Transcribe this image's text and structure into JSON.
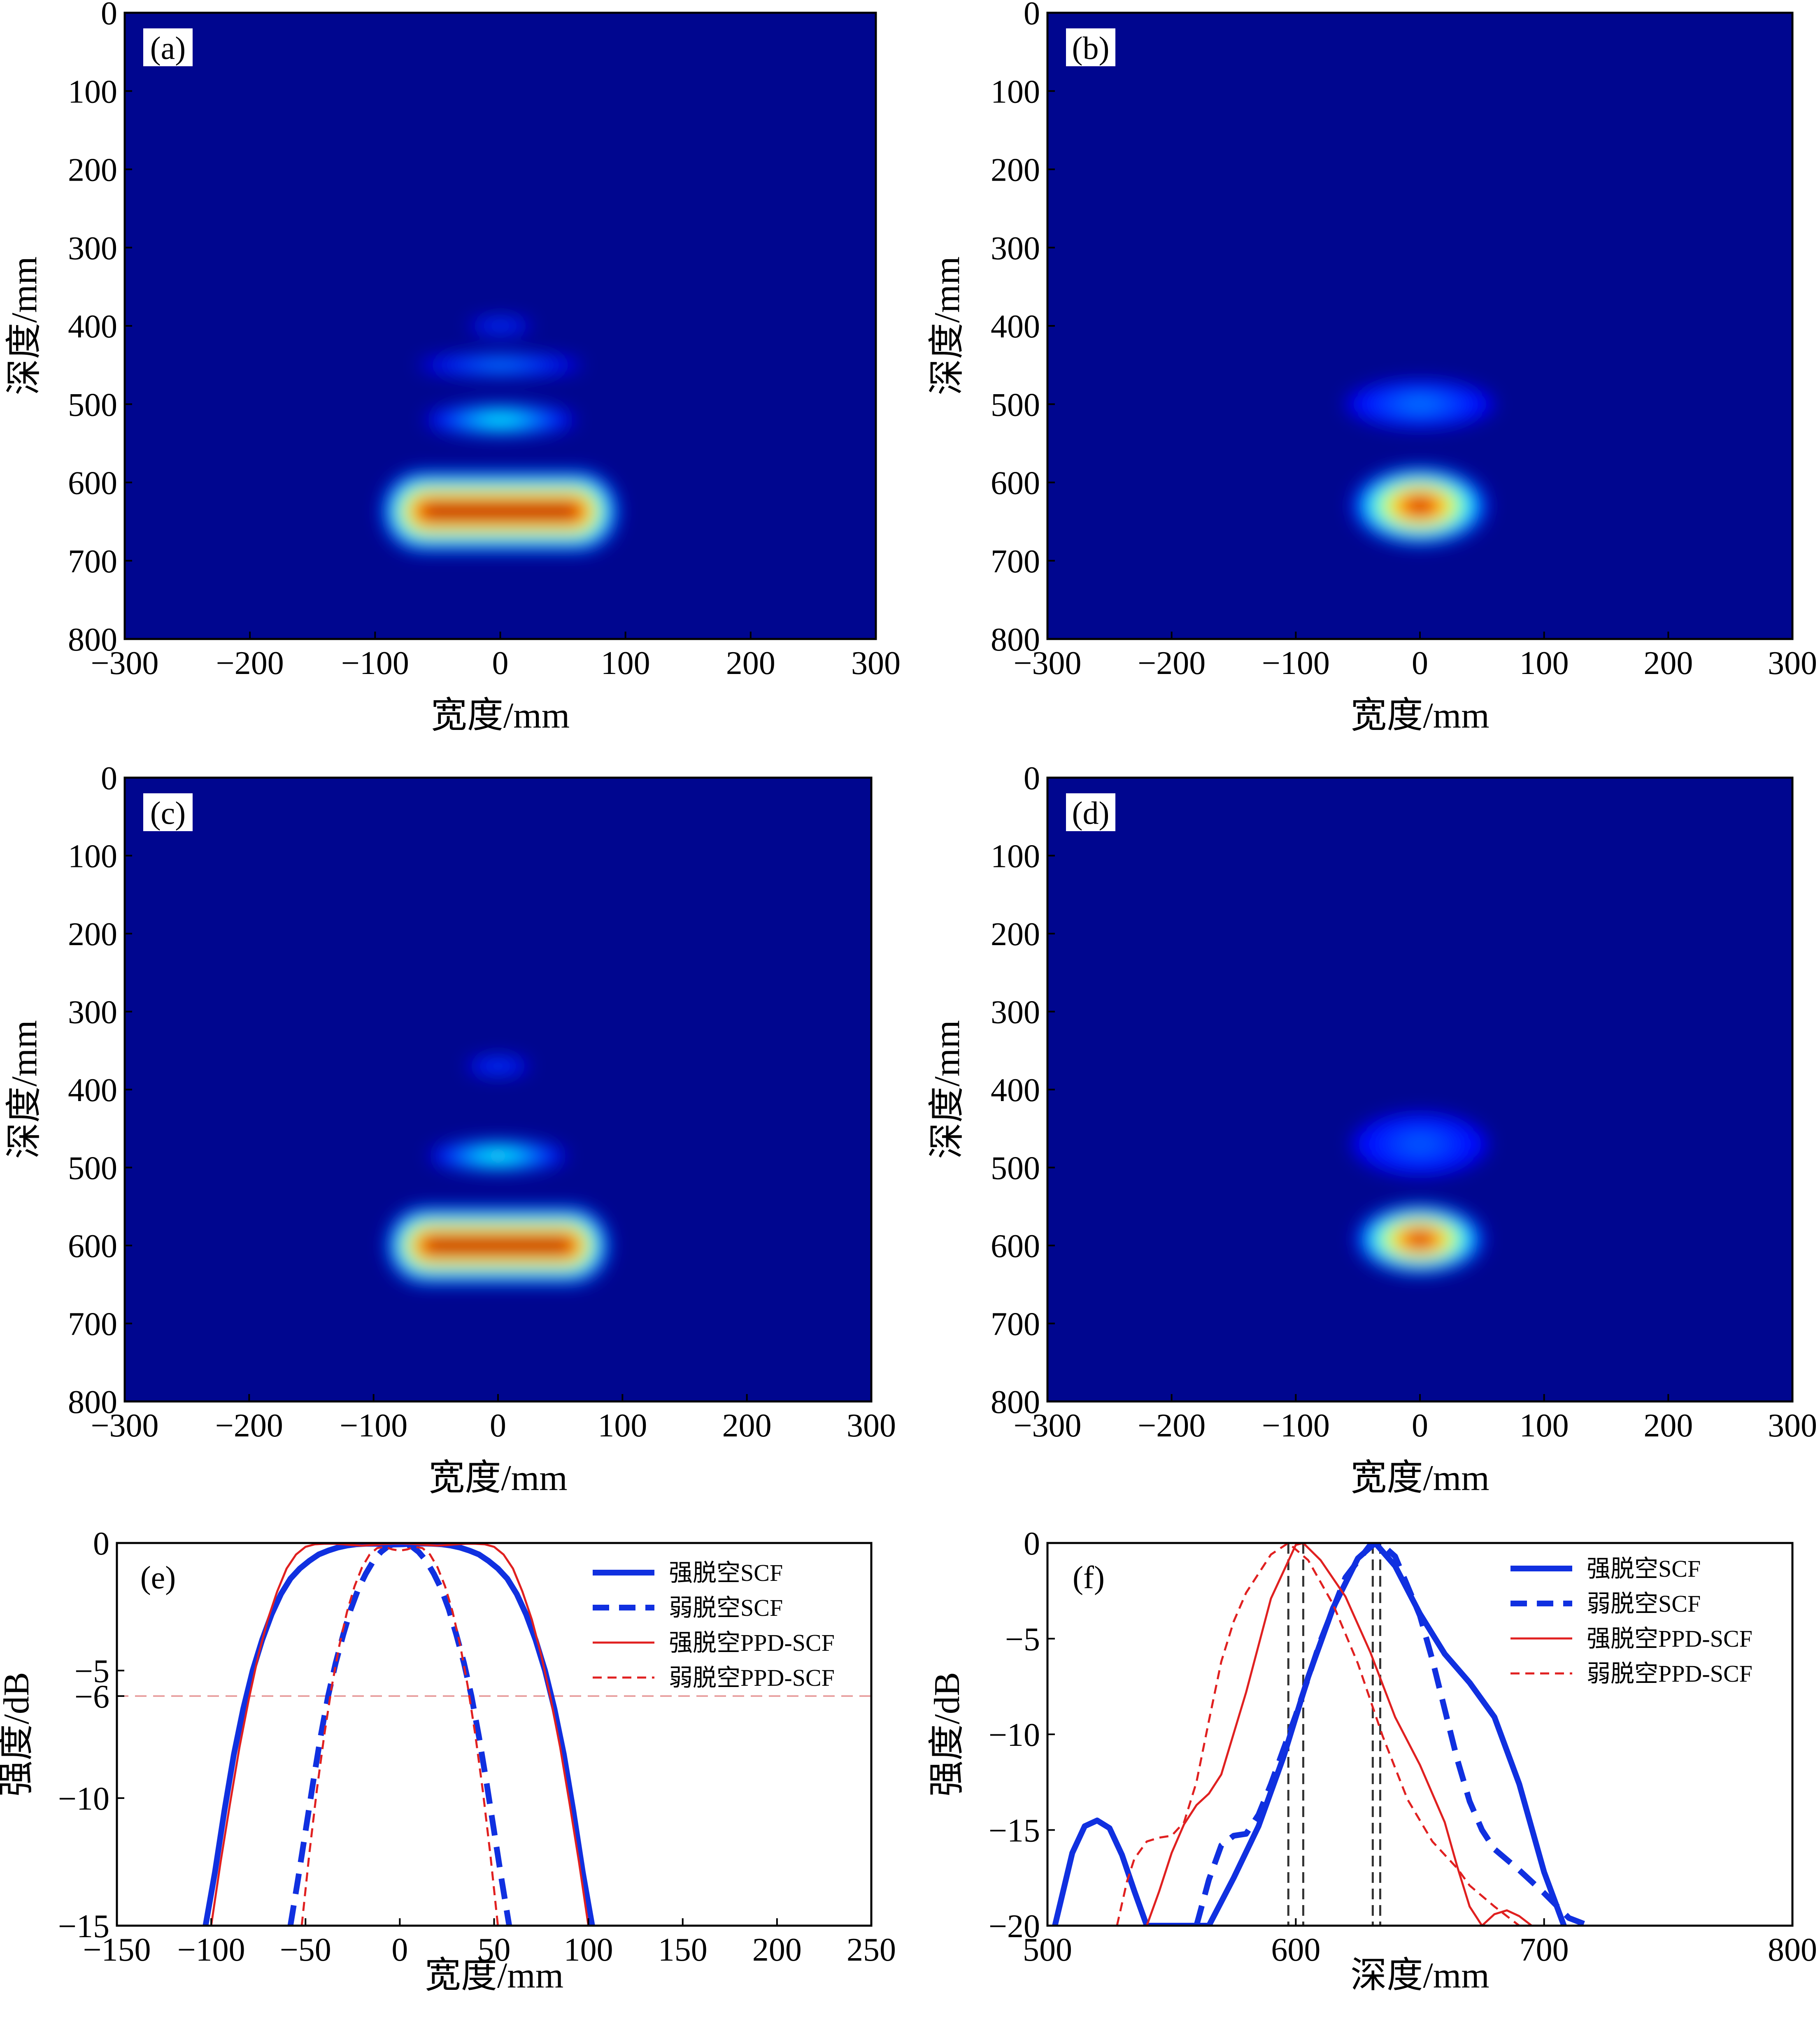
{
  "chart_data": [
    {
      "type": "heatmap",
      "panel_label": "(a)",
      "xlabel": "宽度/mm",
      "ylabel": "深度/mm",
      "xlim": [
        -300,
        300
      ],
      "ylim": [
        800,
        0
      ],
      "xticks": [
        -300,
        -200,
        -100,
        0,
        100,
        200,
        300
      ],
      "yticks": [
        0,
        100,
        200,
        300,
        400,
        500,
        600,
        700,
        800
      ],
      "xtick_labels": [
        "−300",
        "−200",
        "−100",
        "0",
        "100",
        "200",
        "300"
      ],
      "ytick_labels": [
        "0",
        "100",
        "200",
        "300",
        "400",
        "500",
        "600",
        "700",
        "800"
      ],
      "colormap": "jet",
      "background_color": "#00068f",
      "blobs": [
        {
          "x": 0,
          "y": 637,
          "half_width": 95,
          "half_height": 52,
          "intensity": 1.0,
          "shape": "bar"
        },
        {
          "x": 0,
          "y": 450,
          "half_width": 65,
          "half_height": 14,
          "intensity": 0.27,
          "shape": "oval"
        },
        {
          "x": 0,
          "y": 400,
          "half_width": 25,
          "half_height": 10,
          "intensity": 0.2,
          "shape": "oval"
        },
        {
          "x": 0,
          "y": 520,
          "half_width": 60,
          "half_height": 20,
          "intensity": 0.4,
          "shape": "oval"
        }
      ]
    },
    {
      "type": "heatmap",
      "panel_label": "(b)",
      "xlabel": "宽度/mm",
      "ylabel": "深度/mm",
      "xlim": [
        -300,
        300
      ],
      "ylim": [
        800,
        0
      ],
      "xticks": [
        -300,
        -200,
        -100,
        0,
        100,
        200,
        300
      ],
      "yticks": [
        0,
        100,
        200,
        300,
        400,
        500,
        600,
        700,
        800
      ],
      "xtick_labels": [
        "−300",
        "−200",
        "−100",
        "0",
        "100",
        "200",
        "300"
      ],
      "ytick_labels": [
        "0",
        "100",
        "200",
        "300",
        "400",
        "500",
        "600",
        "700",
        "800"
      ],
      "colormap": "jet",
      "background_color": "#00068f",
      "blobs": [
        {
          "x": 0,
          "y": 630,
          "half_width": 55,
          "half_height": 50,
          "intensity": 1.0,
          "shape": "oval"
        },
        {
          "x": 0,
          "y": 500,
          "half_width": 60,
          "half_height": 30,
          "intensity": 0.25,
          "shape": "oval"
        }
      ]
    },
    {
      "type": "heatmap",
      "panel_label": "(c)",
      "xlabel": "宽度/mm",
      "ylabel": "深度/mm",
      "xlim": [
        -300,
        300
      ],
      "ylim": [
        800,
        0
      ],
      "xticks": [
        -300,
        -200,
        -100,
        0,
        100,
        200,
        300
      ],
      "yticks": [
        0,
        100,
        200,
        300,
        400,
        500,
        600,
        700,
        800
      ],
      "xtick_labels": [
        "−300",
        "−200",
        "−100",
        "0",
        "100",
        "200",
        "300"
      ],
      "ytick_labels": [
        "0",
        "100",
        "200",
        "300",
        "400",
        "500",
        "600",
        "700",
        "800"
      ],
      "colormap": "jet",
      "background_color": "#00068f",
      "blobs": [
        {
          "x": 0,
          "y": 600,
          "half_width": 90,
          "half_height": 50,
          "intensity": 1.0,
          "shape": "bar"
        },
        {
          "x": 0,
          "y": 485,
          "half_width": 55,
          "half_height": 20,
          "intensity": 0.42,
          "shape": "oval"
        },
        {
          "x": 0,
          "y": 370,
          "half_width": 25,
          "half_height": 12,
          "intensity": 0.2,
          "shape": "oval"
        }
      ]
    },
    {
      "type": "heatmap",
      "panel_label": "(d)",
      "xlabel": "宽度/mm",
      "ylabel": "深度/mm",
      "xlim": [
        -300,
        300
      ],
      "ylim": [
        800,
        0
      ],
      "xticks": [
        -300,
        -200,
        -100,
        0,
        100,
        200,
        300
      ],
      "yticks": [
        0,
        100,
        200,
        300,
        400,
        500,
        600,
        700,
        800
      ],
      "xtick_labels": [
        "−300",
        "−200",
        "−100",
        "0",
        "100",
        "200",
        "300"
      ],
      "ytick_labels": [
        "0",
        "100",
        "200",
        "300",
        "400",
        "500",
        "600",
        "700",
        "800"
      ],
      "colormap": "jet",
      "background_color": "#00068f",
      "blobs": [
        {
          "x": 0,
          "y": 592,
          "half_width": 52,
          "half_height": 45,
          "intensity": 1.0,
          "shape": "oval"
        },
        {
          "x": 0,
          "y": 470,
          "half_width": 55,
          "half_height": 40,
          "intensity": 0.22,
          "shape": "oval"
        }
      ]
    },
    {
      "type": "line",
      "panel_label": "(e)",
      "xlabel": "宽度/mm",
      "ylabel": "强度/dB",
      "xlim": [
        -150,
        250
      ],
      "ylim": [
        -15,
        0
      ],
      "xticks": [
        -150,
        -100,
        -50,
        0,
        50,
        100,
        150,
        200,
        250
      ],
      "xtick_labels": [
        "−150",
        "−100",
        "−50",
        "0",
        "50",
        "100",
        "150",
        "200",
        "250"
      ],
      "yticks": [
        -15,
        -10,
        -6,
        -5,
        0
      ],
      "ytick_labels": [
        "−15",
        "−10",
        "−6",
        "−5",
        "0"
      ],
      "reference_line": {
        "y": -6,
        "color": "#e8a0a0",
        "style": "dashed"
      },
      "series": [
        {
          "name": "强脱空SCF",
          "color": "#1030e0",
          "style": "solid-thick",
          "x": [
            -103,
            -98,
            -93,
            -88,
            -83,
            -78,
            -73,
            -68,
            -63,
            -58,
            -53,
            -48,
            -43,
            -38,
            -33,
            -28,
            -23,
            -18,
            -13,
            -8,
            -3,
            2,
            7,
            12,
            17,
            22,
            27,
            32,
            37,
            42,
            47,
            52,
            57,
            62,
            67,
            72,
            77,
            82,
            87,
            92,
            97,
            102
          ],
          "y": [
            -15,
            -12.9,
            -10.5,
            -8.3,
            -6.5,
            -5.0,
            -3.8,
            -2.8,
            -2.0,
            -1.4,
            -1.0,
            -0.7,
            -0.45,
            -0.3,
            -0.18,
            -0.1,
            -0.05,
            -0.03,
            -0.03,
            -0.05,
            -0.06,
            -0.05,
            -0.03,
            -0.02,
            -0.03,
            -0.05,
            -0.1,
            -0.18,
            -0.3,
            -0.45,
            -0.7,
            -1.0,
            -1.4,
            -2.0,
            -2.8,
            -3.8,
            -5.0,
            -6.5,
            -8.3,
            -10.5,
            -12.9,
            -15
          ]
        },
        {
          "name": "弱脱空SCF",
          "color": "#1030e0",
          "style": "dashed-thick",
          "x": [
            -58,
            -54,
            -50,
            -46,
            -42,
            -38,
            -34,
            -30,
            -26,
            -22,
            -18,
            -14,
            -10,
            -6,
            -2,
            2,
            6,
            10,
            14,
            18,
            22,
            26,
            30,
            34,
            38,
            42,
            46,
            50,
            54,
            58
          ],
          "y": [
            -15,
            -13.2,
            -11.3,
            -9.4,
            -7.6,
            -6.0,
            -4.7,
            -3.6,
            -2.6,
            -1.8,
            -1.2,
            -0.7,
            -0.35,
            -0.12,
            -0.02,
            -0.02,
            -0.12,
            -0.35,
            -0.7,
            -1.2,
            -1.8,
            -2.6,
            -3.6,
            -4.7,
            -6.0,
            -7.6,
            -9.4,
            -11.3,
            -13.2,
            -15
          ]
        },
        {
          "name": "强脱空PPD-SCF",
          "color": "#e02020",
          "style": "solid-thin",
          "x": [
            -100,
            -95,
            -90,
            -85,
            -80,
            -75,
            -70,
            -65,
            -60,
            -55,
            -50,
            -45,
            -40,
            -35,
            -30,
            -25,
            -20,
            -15,
            -10,
            -5,
            0,
            5,
            10,
            15,
            20,
            25,
            30,
            35,
            40,
            45,
            50,
            55,
            60,
            65,
            70,
            75,
            80,
            85,
            90,
            95,
            100
          ],
          "y": [
            -15,
            -12.5,
            -10.2,
            -8.0,
            -6.1,
            -4.4,
            -3.0,
            -1.9,
            -1.0,
            -0.45,
            -0.15,
            -0.05,
            -0.03,
            -0.03,
            -0.05,
            -0.08,
            -0.1,
            -0.08,
            -0.05,
            -0.03,
            -0.02,
            -0.03,
            -0.05,
            -0.08,
            -0.1,
            -0.08,
            -0.05,
            -0.03,
            -0.03,
            -0.05,
            -0.15,
            -0.45,
            -1.0,
            -1.9,
            -3.0,
            -4.4,
            -6.1,
            -8.0,
            -10.2,
            -12.5,
            -15
          ]
        },
        {
          "name": "弱脱空PPD-SCF",
          "color": "#e02020",
          "style": "dashed-thin",
          "x": [
            -52,
            -48,
            -44,
            -40,
            -36,
            -32,
            -28,
            -24,
            -20,
            -16,
            -12,
            -8,
            -4,
            0,
            4,
            8,
            12,
            16,
            20,
            24,
            28,
            32,
            36,
            40,
            44,
            48,
            52
          ],
          "y": [
            -15,
            -12.2,
            -9.7,
            -7.5,
            -5.6,
            -4.0,
            -2.7,
            -1.7,
            -0.95,
            -0.45,
            -0.2,
            -0.15,
            -0.25,
            -0.3,
            -0.25,
            -0.15,
            -0.2,
            -0.45,
            -0.95,
            -1.7,
            -2.7,
            -4.0,
            -5.6,
            -7.5,
            -9.7,
            -12.2,
            -15
          ]
        }
      ]
    },
    {
      "type": "line",
      "panel_label": "(f)",
      "xlabel": "深度/mm",
      "ylabel": "强度/dB",
      "xlim": [
        500,
        800
      ],
      "ylim": [
        -20,
        0
      ],
      "xticks": [
        500,
        600,
        700,
        800
      ],
      "xtick_labels": [
        "500",
        "600",
        "700",
        "800"
      ],
      "yticks": [
        -20,
        -15,
        -10,
        -5,
        0
      ],
      "ytick_labels": [
        "−20",
        "−15",
        "−10",
        "−5",
        "0"
      ],
      "vertical_reference_lines": [
        597,
        603,
        631,
        634
      ],
      "series": [
        {
          "name": "强脱空SCF",
          "color": "#1030e0",
          "style": "solid-thick",
          "x": [
            503,
            510,
            515,
            520,
            525,
            530,
            535,
            540,
            565,
            575,
            585,
            595,
            605,
            615,
            625,
            632,
            640,
            650,
            660,
            670,
            680,
            690,
            700,
            708
          ],
          "y": [
            -20,
            -16.2,
            -14.8,
            -14.5,
            -14.9,
            -16.3,
            -18.2,
            -20,
            -20,
            -17.5,
            -14.8,
            -11.2,
            -7.0,
            -3.4,
            -0.8,
            0,
            -1.2,
            -3.7,
            -5.8,
            -7.3,
            -9.1,
            -12.6,
            -17.2,
            -20
          ]
        },
        {
          "name": "弱脱空SCF",
          "color": "#1030e0",
          "style": "dashed-thick",
          "x": [
            560,
            565,
            570,
            575,
            580,
            585,
            590,
            600,
            610,
            620,
            630,
            634,
            640,
            650,
            655,
            660,
            665,
            670,
            675,
            680,
            690,
            700,
            710,
            718
          ],
          "y": [
            -20,
            -17.6,
            -15.8,
            -15.3,
            -15.2,
            -14.2,
            -12.6,
            -9.0,
            -5.1,
            -1.8,
            -0.1,
            0,
            -0.7,
            -3.8,
            -6.1,
            -8.7,
            -11.3,
            -13.5,
            -15.0,
            -16.0,
            -17.1,
            -18.3,
            -19.6,
            -20
          ]
        },
        {
          "name": "强脱空PPD-SCF",
          "color": "#e02020",
          "style": "solid-thin",
          "x": [
            540,
            545,
            550,
            555,
            560,
            565,
            570,
            580,
            590,
            600,
            603,
            610,
            620,
            630,
            640,
            650,
            660,
            665,
            670,
            675,
            680,
            685,
            690,
            695
          ],
          "y": [
            -20,
            -18.2,
            -16.2,
            -14.7,
            -13.7,
            -13.1,
            -12.1,
            -7.8,
            -2.9,
            -0.1,
            0,
            -0.9,
            -2.8,
            -5.7,
            -9.1,
            -11.6,
            -14.6,
            -16.9,
            -19.0,
            -20,
            -19.4,
            -19.2,
            -19.5,
            -20
          ]
        },
        {
          "name": "弱脱空PPD-SCF",
          "color": "#e02020",
          "style": "dashed-thin",
          "x": [
            528,
            532,
            535,
            540,
            545,
            550,
            555,
            560,
            565,
            570,
            575,
            580,
            590,
            597,
            605,
            615,
            625,
            635,
            645,
            655,
            660,
            665,
            670,
            680,
            690
          ],
          "y": [
            -20,
            -17.7,
            -16.5,
            -15.6,
            -15.4,
            -15.3,
            -14.6,
            -12.5,
            -9.3,
            -6.2,
            -4.1,
            -2.6,
            -0.6,
            0,
            -0.9,
            -3.2,
            -6.3,
            -10.1,
            -13.4,
            -15.6,
            -16.3,
            -17.0,
            -17.9,
            -19.0,
            -20
          ]
        }
      ]
    }
  ]
}
